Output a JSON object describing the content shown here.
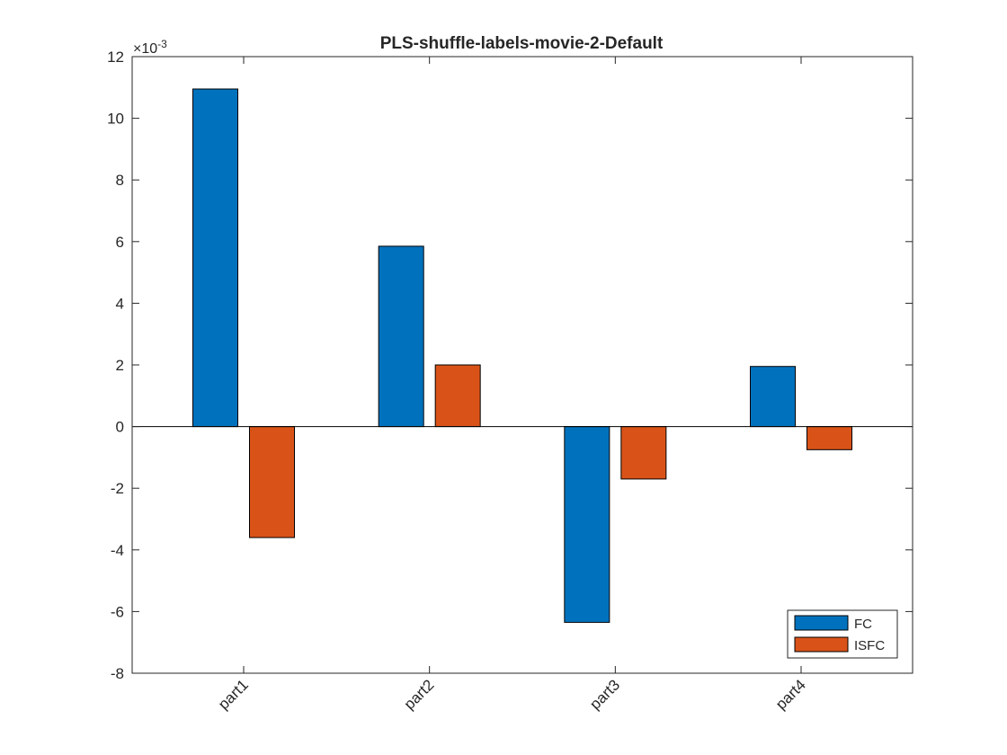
{
  "chart_data": {
    "type": "bar",
    "title": "PLS-shuffle-labels-movie-2-Default",
    "xlabel": "",
    "ylabel": "",
    "y_exponent_label": "×10",
    "y_exponent": "-3",
    "categories": [
      "part1",
      "part2",
      "part3",
      "part4"
    ],
    "series": [
      {
        "name": "FC",
        "values": [
          0.01095,
          0.00585,
          -0.00635,
          0.00195
        ],
        "color": "#0072BD"
      },
      {
        "name": "ISFC",
        "values": [
          -0.0036,
          0.002,
          -0.0017,
          -0.00075
        ],
        "color": "#D95319"
      }
    ],
    "ylim": [
      -0.008,
      0.012
    ],
    "yticks": [
      -0.008,
      -0.006,
      -0.004,
      -0.002,
      0,
      0.002,
      0.004,
      0.006,
      0.008,
      0.01,
      0.012
    ],
    "ytick_labels": [
      "-8",
      "-6",
      "-4",
      "-2",
      "0",
      "2",
      "4",
      "6",
      "8",
      "10",
      "12"
    ],
    "grid": false,
    "legend_position": "bottom-right"
  }
}
